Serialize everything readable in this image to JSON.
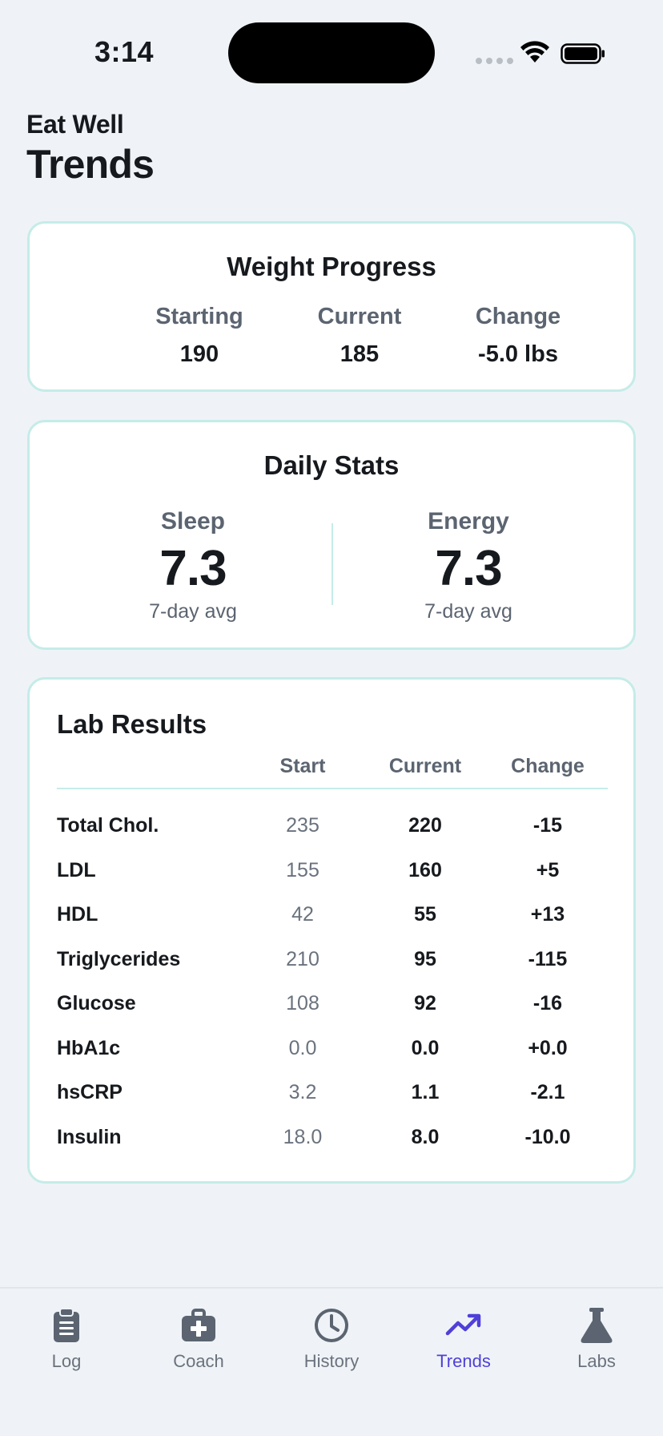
{
  "status_bar": {
    "time": "3:14"
  },
  "header": {
    "app_name": "Eat Well",
    "title": "Trends"
  },
  "weight": {
    "title": "Weight Progress",
    "columns": [
      {
        "label": "Starting",
        "value": "190"
      },
      {
        "label": "Current",
        "value": "185"
      },
      {
        "label": "Change",
        "value": "-5.0 lbs"
      }
    ]
  },
  "daily": {
    "title": "Daily Stats",
    "sleep": {
      "label": "Sleep",
      "value": "7.3",
      "sub": "7-day avg"
    },
    "energy": {
      "label": "Energy",
      "value": "7.3",
      "sub": "7-day avg"
    }
  },
  "labs": {
    "title": "Lab Results",
    "headers": {
      "start": "Start",
      "current": "Current",
      "change": "Change"
    },
    "rows": [
      {
        "name": "Total Chol.",
        "start": "235",
        "current": "220",
        "change": "-15"
      },
      {
        "name": "LDL",
        "start": "155",
        "current": "160",
        "change": "+5"
      },
      {
        "name": "HDL",
        "start": "42",
        "current": "55",
        "change": "+13"
      },
      {
        "name": "Triglycerides",
        "start": "210",
        "current": "95",
        "change": "-115"
      },
      {
        "name": "Glucose",
        "start": "108",
        "current": "92",
        "change": "-16"
      },
      {
        "name": "HbA1c",
        "start": "0.0",
        "current": "0.0",
        "change": "+0.0"
      },
      {
        "name": "hsCRP",
        "start": "3.2",
        "current": "1.1",
        "change": "-2.1"
      },
      {
        "name": "Insulin",
        "start": "18.0",
        "current": "8.0",
        "change": "-10.0"
      }
    ]
  },
  "tabs": [
    {
      "label": "Log",
      "icon": "clipboard-icon"
    },
    {
      "label": "Coach",
      "icon": "medical-kit-icon"
    },
    {
      "label": "History",
      "icon": "clock-icon"
    },
    {
      "label": "Trends",
      "icon": "trending-up-icon"
    },
    {
      "label": "Labs",
      "icon": "flask-icon"
    }
  ],
  "colors": {
    "accent": "#4f40d8",
    "card_border": "#c5ece8",
    "background": "#eff3f7"
  }
}
